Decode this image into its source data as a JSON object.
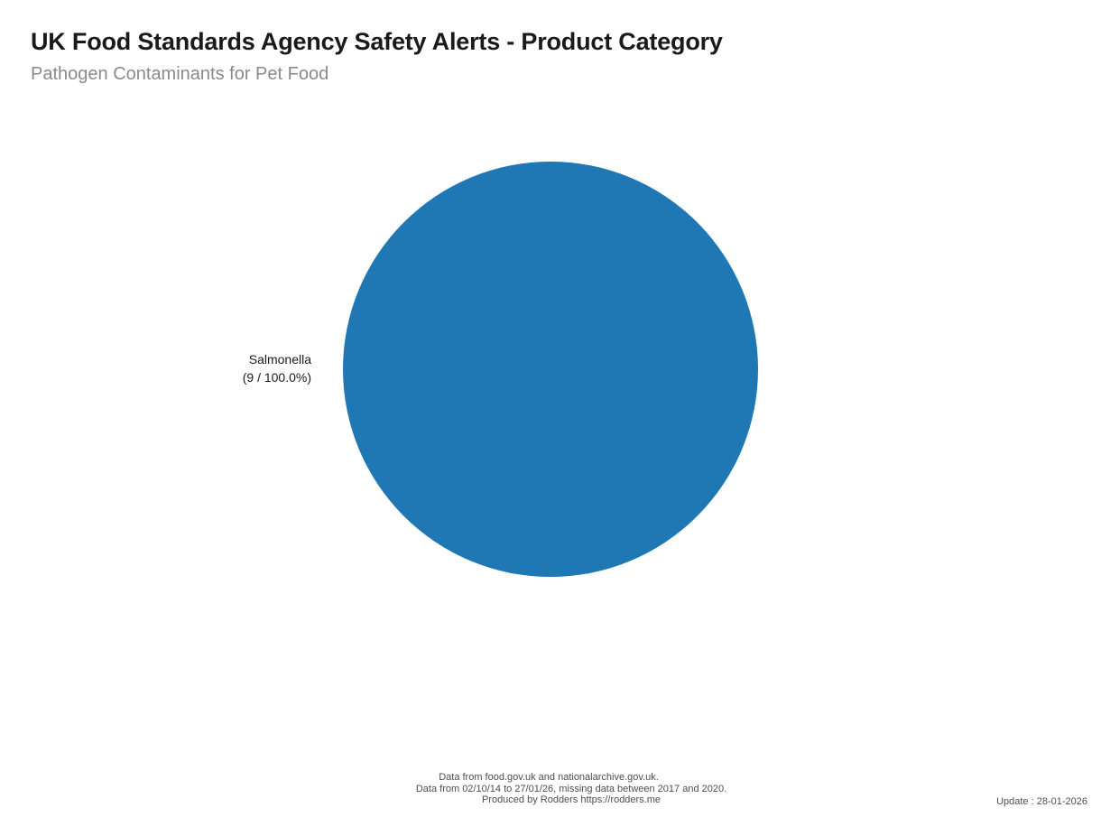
{
  "header": {
    "title": "UK Food Standards Agency Safety Alerts - Product Category",
    "subtitle": "Pathogen Contaminants for Pet Food"
  },
  "chart_data": {
    "type": "pie",
    "title": "UK Food Standards Agency Safety Alerts - Product Category",
    "subtitle": "Pathogen Contaminants for Pet Food",
    "categories": [
      "Salmonella"
    ],
    "values": [
      9
    ],
    "percents": [
      100.0
    ],
    "slices": [
      {
        "label": "Salmonella",
        "count": 9,
        "percent": 100.0,
        "color": "#1f77b4"
      }
    ],
    "total": 9,
    "legend_position": "none",
    "label_position": "left-of-pie"
  },
  "pie_label": {
    "name": "Salmonella",
    "value": "(9 / 100.0%)"
  },
  "footer": {
    "source_line": "Data from food.gov.uk and nationalarchive.gov.uk.",
    "range_line": "Data from 02/10/14 to 27/01/26, missing data between 2017 and 2020.",
    "credit_line": "Produced by Rodders https://rodders.me",
    "update": "Update : 28-01-2026"
  },
  "colors": {
    "pie_blue": "#1f77b4",
    "title_text": "#1a1a1a",
    "subtitle_text": "#8a8a8a",
    "footer_text": "#4d4d4d",
    "background": "#ffffff"
  }
}
